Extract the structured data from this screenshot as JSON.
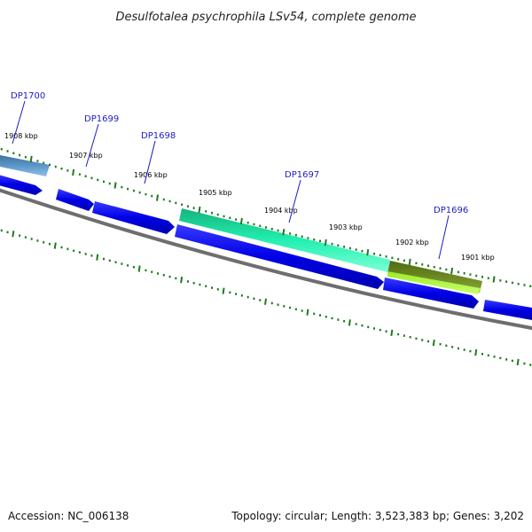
{
  "title": "Desulfotalea psychrophila LSv54, complete genome",
  "footer": {
    "accession": "Accession: NC_006138",
    "summary": "Topology: circular; Length: 3,523,383 bp; Genes: 3,202"
  },
  "colors": {
    "backbone": "#7a7a7a",
    "gene_forward": "#0000e0",
    "tick": "#1f7a1f",
    "label": "#1c1cc8",
    "dp1700": "#4f86b8",
    "dp1697": "#19e6a0",
    "dp1696_outer": "#6b8a18",
    "dp1696_inner": "#aef03a"
  },
  "scale_labels": [
    "1908 kbp",
    "1907 kbp",
    "1906 kbp",
    "1905 kbp",
    "1904 kbp",
    "1903 kbp",
    "1902 kbp",
    "1901 kbp"
  ],
  "gene_labels": [
    "DP1700",
    "DP1699",
    "DP1698",
    "DP1697",
    "DP1696"
  ]
}
